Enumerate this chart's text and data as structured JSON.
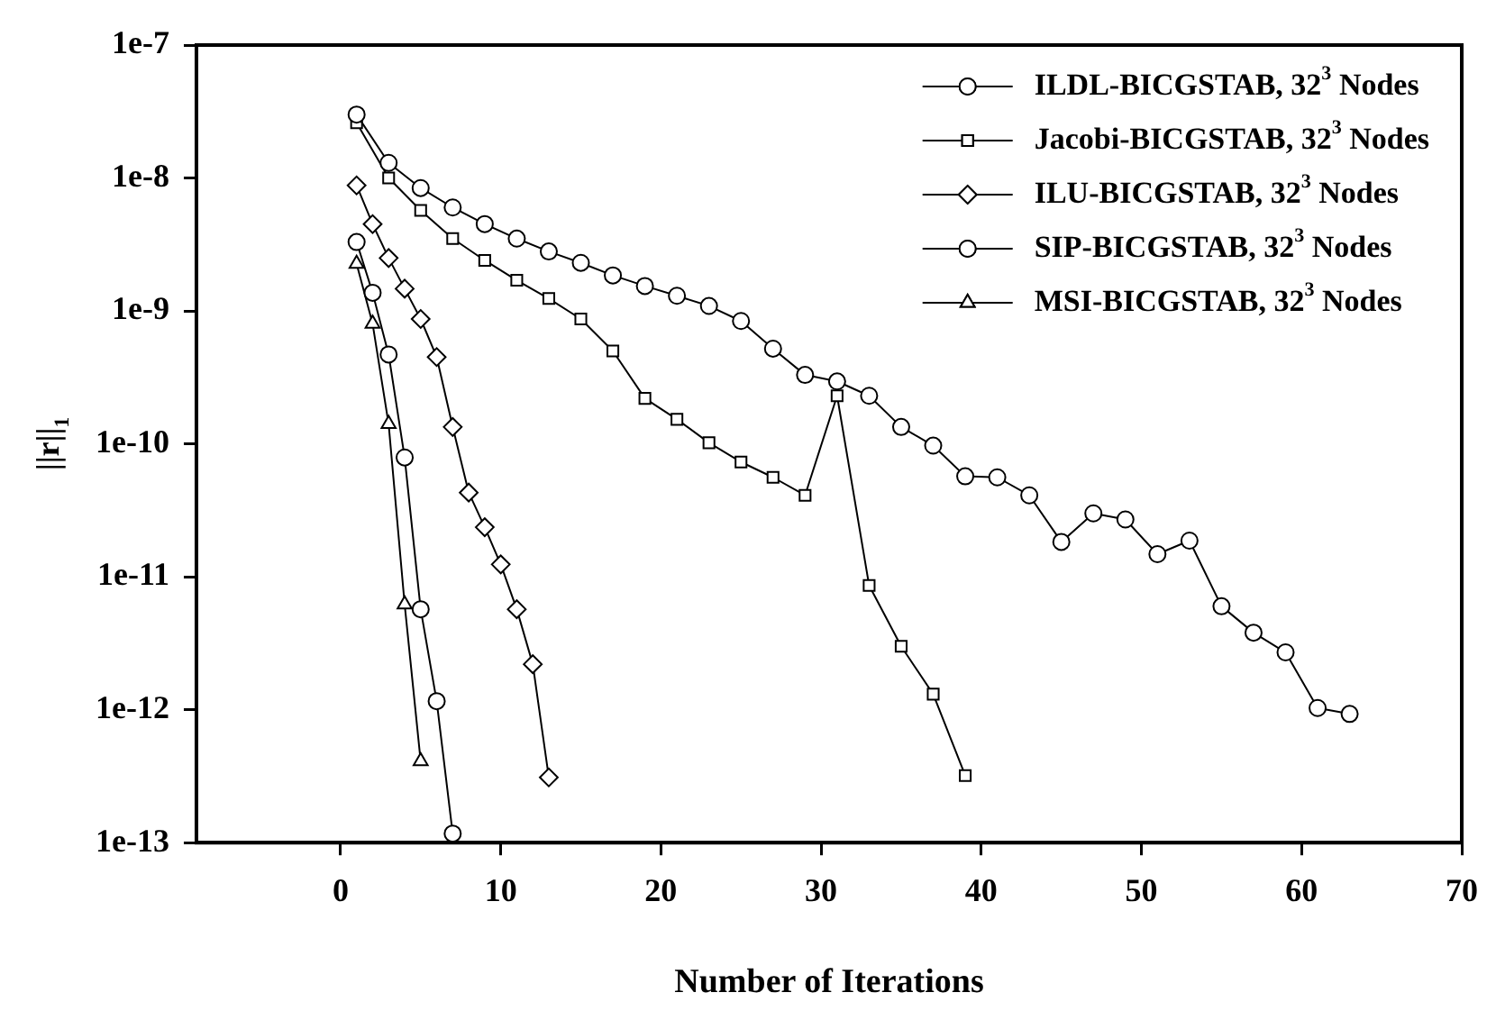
{
  "chart_data": {
    "type": "line",
    "xlabel": "Number of Iterations",
    "ylabel": "||r||$_{1}$",
    "log": "y",
    "xlim": [
      -9,
      70
    ],
    "xticks": [
      0,
      10,
      20,
      30,
      40,
      50,
      60,
      70
    ],
    "ylim": [
      1e-13,
      1e-07
    ],
    "yticks": [
      {
        "value": 1e-13,
        "label": "1e-13"
      },
      {
        "value": 1e-12,
        "label": "1e-12"
      },
      {
        "value": 1e-11,
        "label": "1e-11"
      },
      {
        "value": 1e-10,
        "label": "1e-10"
      },
      {
        "value": 1e-09,
        "label": "1e-9"
      },
      {
        "value": 1e-08,
        "label": "1e-8"
      },
      {
        "value": 1e-07,
        "label": "1e-7"
      }
    ],
    "legend": "top right",
    "line_style": "solid",
    "series": [
      {
        "name": "ILDL-BICGSTAB, 32$^{3}$ Nodes",
        "color": "#000000",
        "marker": "circle",
        "x": [
          1,
          3,
          5,
          7,
          9,
          11,
          13,
          15,
          17,
          19,
          21,
          23,
          25,
          27,
          29,
          31,
          33,
          35,
          37,
          39,
          41,
          43,
          45,
          47,
          49,
          51,
          53,
          55,
          57,
          59,
          61,
          63
        ],
        "values": [
          3e-08,
          1.3e-08,
          8.4e-09,
          6e-09,
          4.5e-09,
          3.5e-09,
          2.8e-09,
          2.3e-09,
          1.85e-09,
          1.54e-09,
          1.3e-09,
          1.09e-09,
          8.4e-10,
          5.2e-10,
          3.3e-10,
          2.95e-10,
          2.3e-10,
          1.34e-10,
          9.7e-11,
          5.7e-11,
          5.6e-11,
          4.1e-11,
          1.83e-11,
          3e-11,
          2.7e-11,
          1.48e-11,
          1.87e-11,
          6e-12,
          3.8e-12,
          2.7e-12,
          1.03e-12,
          9.3e-13
        ]
      },
      {
        "name": "Jacobi-BICGSTAB, 32$^{3}$ Nodes",
        "color": "#000000",
        "marker": "square",
        "x": [
          1,
          3,
          5,
          7,
          9,
          11,
          13,
          15,
          17,
          19,
          21,
          23,
          25,
          27,
          29,
          31,
          33,
          35,
          37,
          39
        ],
        "values": [
          2.6e-08,
          1e-08,
          5.7e-09,
          3.5e-09,
          2.4e-09,
          1.7e-09,
          1.24e-09,
          8.7e-10,
          5e-10,
          2.2e-10,
          1.53e-10,
          1.02e-10,
          7.3e-11,
          5.6e-11,
          4.1e-11,
          2.3e-10,
          8.6e-12,
          3e-12,
          1.31e-12,
          3.2e-13
        ]
      },
      {
        "name": "ILU-BICGSTAB, 32$^{3}$ Nodes",
        "color": "#000000",
        "marker": "diamond",
        "x": [
          1,
          2,
          3,
          4,
          5,
          6,
          7,
          8,
          9,
          10,
          11,
          12,
          13
        ],
        "values": [
          8.8e-09,
          4.5e-09,
          2.5e-09,
          1.47e-09,
          8.7e-10,
          4.5e-10,
          1.34e-10,
          4.3e-11,
          2.36e-11,
          1.24e-11,
          5.7e-12,
          2.2e-12,
          3.1e-13
        ]
      },
      {
        "name": "SIP-BICGSTAB, 32$^{3}$ Nodes",
        "color": "#000000",
        "marker": "circle",
        "x": [
          1,
          2,
          3,
          4,
          5,
          6,
          7
        ],
        "values": [
          3.3e-09,
          1.37e-09,
          4.7e-10,
          7.9e-11,
          5.7e-12,
          1.16e-12,
          1.17e-13
        ]
      },
      {
        "name": "MSI-BICGSTAB, 32$^{3}$ Nodes",
        "color": "#000000",
        "marker": "triangle",
        "x": [
          1,
          2,
          3,
          4,
          5
        ],
        "values": [
          2.26e-09,
          8e-10,
          1.41e-10,
          6.2e-12,
          4.1e-13
        ]
      }
    ]
  }
}
